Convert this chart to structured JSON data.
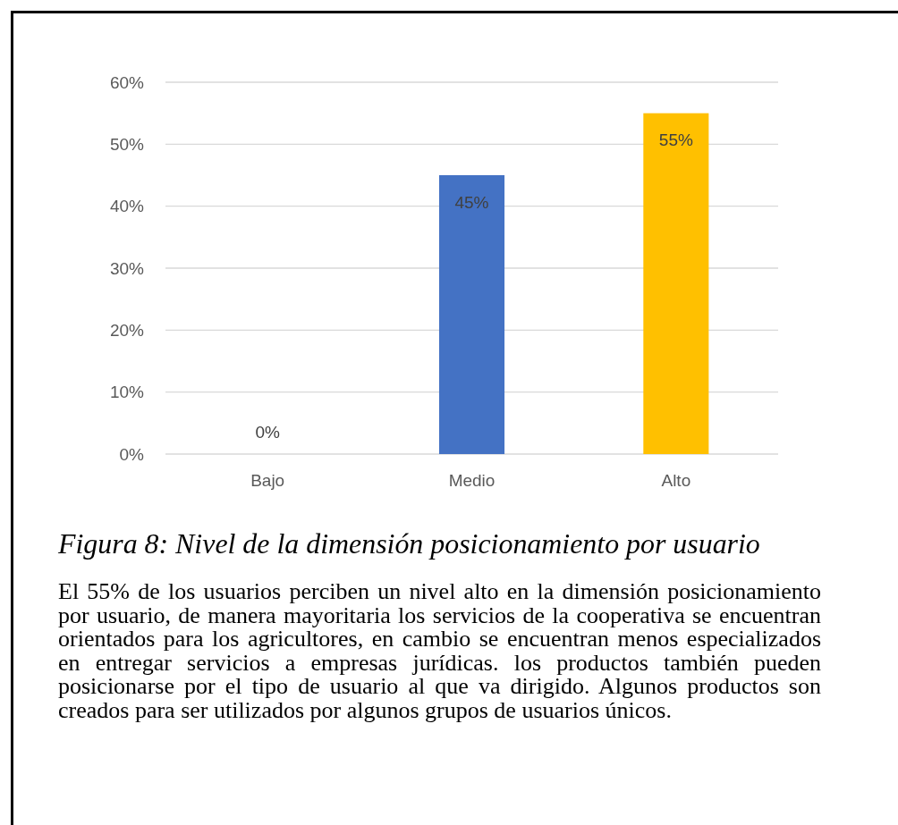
{
  "chart_data": {
    "type": "bar",
    "title": "Figura 8: Nivel de la dimensión posicionamiento por usuario",
    "annotations": [
      "El 55% de los usuarios perciben un nivel alto en la dimensión posicionamiento por usuario, de manera mayoritaria los servicios de la cooperativa se encuentran orientados para los agricultores, en cambio se encuentran menos especializados en entregar servicios a empresas jurídicas. los productos también pueden posicionarse por el tipo de usuario al que va dirigido. Algunos productos son creados para ser utilizados por algunos grupos de usuarios únicos."
    ],
    "categories": [
      "Bajo",
      "Medio",
      "Alto"
    ],
    "values": [
      0,
      45,
      55
    ],
    "colors": [
      "#4472c4",
      "#4472c4",
      "#ffc000"
    ],
    "value_labels": [
      "0%",
      "45%",
      "55%"
    ],
    "ylim": [
      0,
      60
    ],
    "yticks": [
      {
        "value": 0,
        "label": "0%"
      },
      {
        "value": 10,
        "label": "10%"
      },
      {
        "value": 20,
        "label": "20%"
      },
      {
        "value": 30,
        "label": "30%"
      },
      {
        "value": 40,
        "label": "40%"
      },
      {
        "value": 50,
        "label": "50%"
      },
      {
        "value": 60,
        "label": "60%"
      }
    ],
    "grid": "y"
  }
}
